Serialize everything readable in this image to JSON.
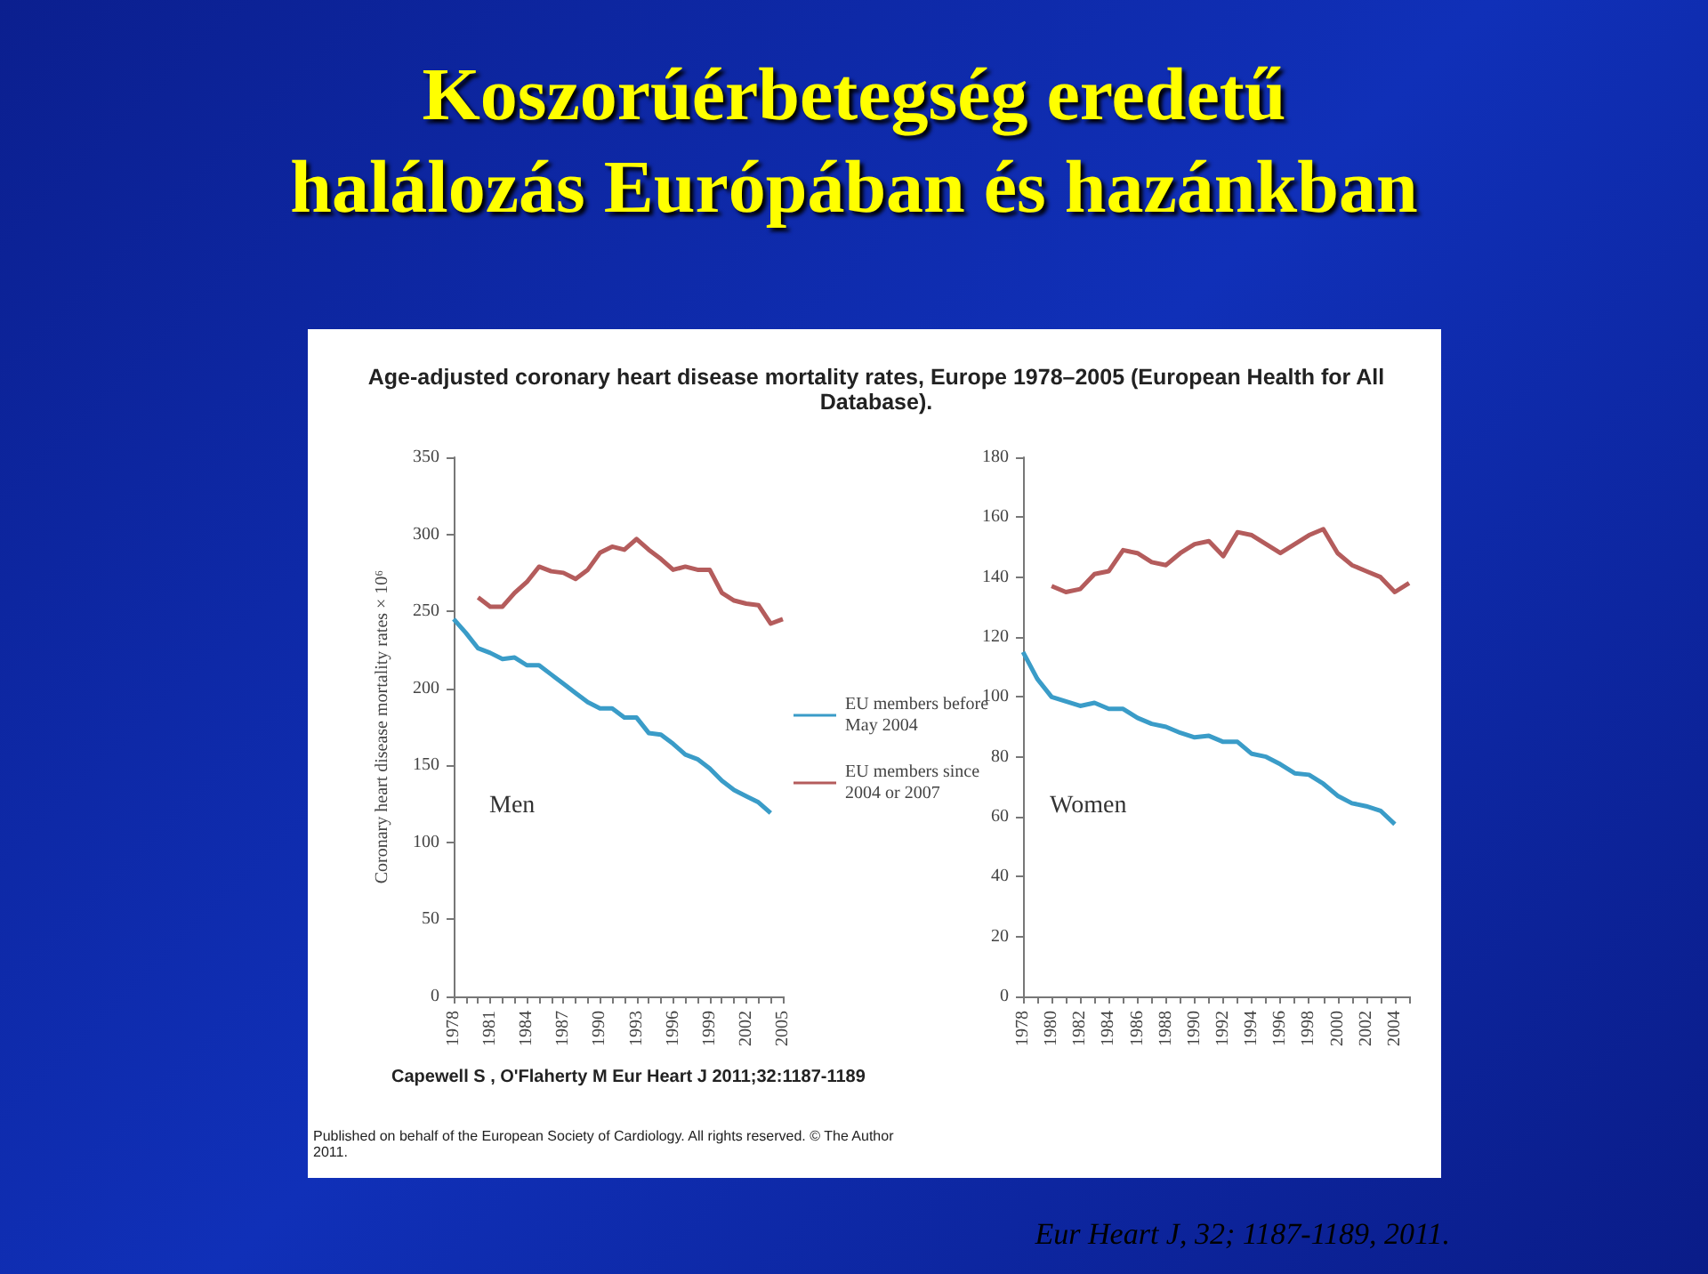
{
  "chart_data": [
    {
      "type": "other",
      "title": "Koszorúérbetegség eredetű\nhalálozás Európában és hazánkban",
      "subtitle": "Age-adjusted coronary heart disease mortality rates, Europe 1978–2005 (European Health for All Database).",
      "annotations": [
        "Capewell S , O'Flaherty M Eur Heart J 2011;32:1187-1189",
        "Published on behalf of the European Society of Cardiology. All rights reserved. © The Author 2011.",
        "Eur Heart J, 32; 1187-1189, 2011."
      ]
    },
    {
      "type": "line",
      "title": "Men",
      "ylabel": "Coronary heart disease mortality rates × 10⁶",
      "marker": "none",
      "legend": "right",
      "xlim": [
        1978,
        2005
      ],
      "ylim": [
        0,
        350
      ],
      "yticks": [
        0,
        50,
        100,
        150,
        200,
        250,
        300,
        350
      ],
      "xticks": [
        1978,
        {
          "value": 1979,
          "label": null
        },
        {
          "value": 1980,
          "label": null
        },
        1981,
        {
          "value": 1982,
          "label": null
        },
        {
          "value": 1983,
          "label": null
        },
        1984,
        {
          "value": 1985,
          "label": null
        },
        {
          "value": 1986,
          "label": null
        },
        1987,
        {
          "value": 1988,
          "label": null
        },
        {
          "value": 1989,
          "label": null
        },
        1990,
        {
          "value": 1991,
          "label": null
        },
        {
          "value": 1992,
          "label": null
        },
        1993,
        {
          "value": 1994,
          "label": null
        },
        {
          "value": 1995,
          "label": null
        },
        1996,
        {
          "value": 1997,
          "label": null
        },
        {
          "value": 1998,
          "label": null
        },
        1999,
        {
          "value": 2000,
          "label": null
        },
        {
          "value": 2001,
          "label": null
        },
        2002,
        {
          "value": 2003,
          "label": null
        },
        {
          "value": 2004,
          "label": null
        },
        2005
      ],
      "series": [
        {
          "name": "EU members before May 2004",
          "color": "#3a9cc8",
          "x": [
            1978,
            1979,
            1980,
            1981,
            1982,
            1983,
            1984,
            1985,
            1986,
            1987,
            1988,
            1989,
            1990,
            1991,
            1992,
            1993,
            1994,
            1995,
            1996,
            1997,
            1998,
            1999,
            2000,
            2001,
            2002,
            2003,
            2004
          ],
          "values": [
            245,
            236,
            226,
            223,
            219,
            220,
            215,
            215,
            209,
            203,
            197,
            191,
            187,
            187,
            181,
            181,
            171,
            170,
            164,
            157,
            154,
            148,
            140,
            134,
            130,
            126,
            119
          ]
        },
        {
          "name": "EU members since 2004 or 2007",
          "color": "#b45c5c",
          "x": [
            1980,
            1981,
            1982,
            1983,
            1984,
            1985,
            1986,
            1987,
            1988,
            1989,
            1990,
            1991,
            1992,
            1993,
            1994,
            1995,
            1996,
            1997,
            1998,
            1999,
            2000,
            2001,
            2002,
            2003,
            2004,
            2005
          ],
          "values": [
            259,
            253,
            253,
            262,
            269,
            279,
            276,
            275,
            271,
            277,
            288,
            292,
            290,
            297,
            290,
            284,
            277,
            279,
            277,
            277,
            262,
            257,
            255,
            254,
            242,
            245
          ]
        }
      ]
    },
    {
      "type": "line",
      "title": "Women",
      "marker": "none",
      "xlim": [
        1978,
        2005
      ],
      "ylim": [
        0,
        180
      ],
      "yticks": [
        0,
        20,
        40,
        60,
        80,
        100,
        120,
        140,
        160,
        180
      ],
      "xticks": [
        1978,
        {
          "value": 1979,
          "label": null
        },
        1980,
        {
          "value": 1981,
          "label": null
        },
        1982,
        {
          "value": 1983,
          "label": null
        },
        1984,
        {
          "value": 1985,
          "label": null
        },
        1986,
        {
          "value": 1987,
          "label": null
        },
        1988,
        {
          "value": 1989,
          "label": null
        },
        1990,
        {
          "value": 1991,
          "label": null
        },
        1992,
        {
          "value": 1993,
          "label": null
        },
        1994,
        {
          "value": 1995,
          "label": null
        },
        1996,
        {
          "value": 1997,
          "label": null
        },
        1998,
        {
          "value": 1999,
          "label": null
        },
        2000,
        {
          "value": 2001,
          "label": null
        },
        2002,
        {
          "value": 2003,
          "label": null
        },
        2004,
        {
          "value": 2005,
          "label": null
        }
      ],
      "series": [
        {
          "color": "#3a9cc8",
          "x": [
            1978,
            1979,
            1980,
            1981,
            1982,
            1983,
            1984,
            1985,
            1986,
            1987,
            1988,
            1989,
            1990,
            1991,
            1992,
            1993,
            1994,
            1995,
            1996,
            1997,
            1998,
            1999,
            2000,
            2001,
            2002,
            2003,
            2004
          ],
          "values": [
            115,
            106,
            100,
            98.5,
            97,
            98,
            96,
            96,
            93,
            91,
            90,
            88,
            86.5,
            87,
            85,
            85,
            81,
            80,
            77.5,
            74.5,
            74,
            71,
            67,
            64.5,
            63.5,
            62,
            57.5
          ]
        },
        {
          "color": "#b45c5c",
          "x": [
            1980,
            1981,
            1982,
            1983,
            1984,
            1985,
            1986,
            1987,
            1988,
            1989,
            1990,
            1991,
            1992,
            1993,
            1994,
            1995,
            1996,
            1997,
            1998,
            1999,
            2000,
            2001,
            2002,
            2003,
            2004,
            2005
          ],
          "values": [
            137,
            135,
            136,
            141,
            142,
            149,
            148,
            145,
            144,
            148,
            151,
            152,
            147,
            155,
            154,
            151,
            148,
            151,
            154,
            156,
            148,
            144,
            142,
            140,
            135,
            138
          ]
        }
      ]
    }
  ]
}
